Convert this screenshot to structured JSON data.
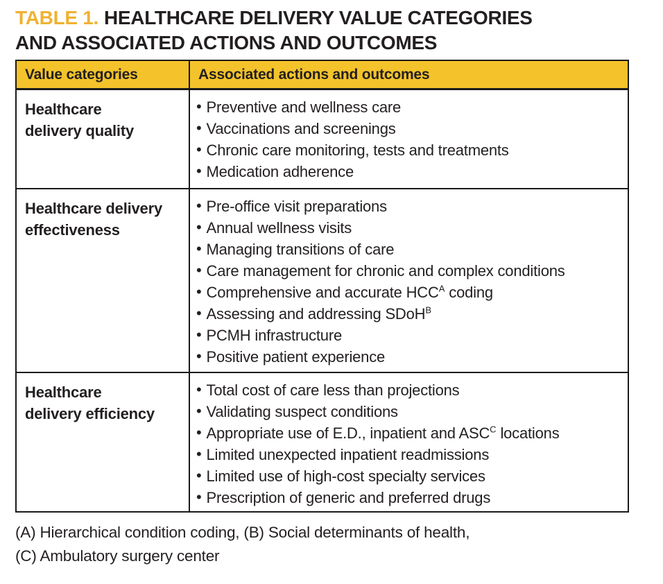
{
  "title": {
    "label": "TABLE 1.",
    "line1": "HEALTHCARE DELIVERY VALUE CATEGORIES",
    "line2": "AND ASSOCIATED ACTIONS AND OUTCOMES"
  },
  "colors": {
    "accent_gold": "#efb232",
    "header_bg": "#f4c32b",
    "text": "#231f20",
    "border": "#1a1a1a"
  },
  "bullet_char": "•",
  "table": {
    "headers": [
      "Value categories",
      "Associated actions and outcomes"
    ],
    "rows": [
      {
        "category_lines": [
          "Healthcare",
          "delivery quality"
        ],
        "items": [
          {
            "text": "Preventive and wellness care"
          },
          {
            "text": "Vaccinations and screenings"
          },
          {
            "text": "Chronic care monitoring, tests and treatments"
          },
          {
            "text": "Medication adherence"
          }
        ]
      },
      {
        "category_lines": [
          "Healthcare delivery",
          "effectiveness"
        ],
        "items": [
          {
            "text": "Pre-office visit preparations"
          },
          {
            "text": "Annual wellness visits"
          },
          {
            "text": "Managing transitions of care"
          },
          {
            "text": "Care management for chronic and complex conditions"
          },
          {
            "text": "Comprehensive and accurate HCC",
            "sup": "A",
            "after": " coding"
          },
          {
            "text": "Assessing and addressing SDoH",
            "sup": "B",
            "after": ""
          },
          {
            "text": "PCMH infrastructure"
          },
          {
            "text": "Positive patient experience"
          }
        ]
      },
      {
        "category_lines": [
          "Healthcare",
          "delivery efficiency"
        ],
        "items": [
          {
            "text": "Total cost of care less than projections"
          },
          {
            "text": "Validating suspect conditions"
          },
          {
            "text": "Appropriate use of E.D., inpatient and ASC",
            "sup": "C",
            "after": " locations"
          },
          {
            "text": "Limited unexpected inpatient readmissions"
          },
          {
            "text": "Limited use of high-cost specialty services"
          },
          {
            "text": "Prescription of generic and preferred drugs"
          }
        ]
      }
    ]
  },
  "footnotes": [
    "(A) Hierarchical condition coding, (B) Social determinants of health,",
    "(C) Ambulatory surgery center"
  ]
}
